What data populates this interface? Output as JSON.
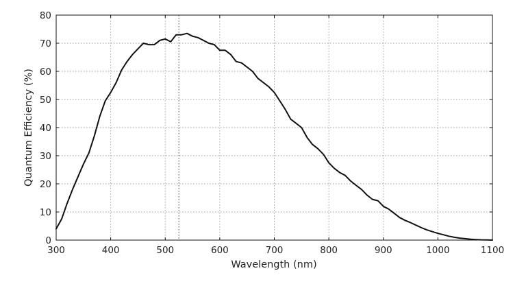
{
  "chart_data": {
    "type": "line",
    "title": "",
    "xlabel": "Wavelength (nm)",
    "ylabel": "Quantum Efficiency (%)",
    "xlim": [
      300,
      1100
    ],
    "ylim": [
      0,
      80
    ],
    "x_ticks": [
      "300",
      "400",
      "500",
      "600",
      "700",
      "800",
      "900",
      "1000",
      "1100"
    ],
    "y_ticks": [
      "0",
      "10",
      "20",
      "30",
      "40",
      "50",
      "60",
      "70",
      "80"
    ],
    "grid": true,
    "legend": "none",
    "vertical_reference_x": 525,
    "series": [
      {
        "color": "#111111",
        "x": [
          300,
          310,
          320,
          330,
          340,
          350,
          360,
          370,
          380,
          390,
          400,
          410,
          420,
          430,
          440,
          450,
          460,
          470,
          480,
          490,
          500,
          510,
          520,
          530,
          540,
          550,
          560,
          570,
          580,
          590,
          600,
          610,
          620,
          630,
          640,
          650,
          660,
          670,
          680,
          690,
          700,
          710,
          720,
          730,
          740,
          750,
          760,
          770,
          780,
          790,
          800,
          810,
          820,
          830,
          840,
          850,
          860,
          870,
          880,
          890,
          900,
          910,
          920,
          930,
          940,
          950,
          960,
          970,
          980,
          990,
          1000,
          1010,
          1020,
          1030,
          1040,
          1050,
          1060,
          1070,
          1080,
          1090,
          1100
        ],
        "y": [
          4,
          7.5,
          13,
          18,
          22.5,
          27,
          31,
          37,
          44,
          49.5,
          52.5,
          56,
          60.5,
          63.5,
          66,
          68,
          70,
          69.5,
          69.5,
          71,
          71.5,
          70.5,
          73,
          73,
          73.5,
          72.5,
          72,
          71,
          70,
          69.5,
          67.5,
          67.5,
          66,
          63.5,
          63,
          61.5,
          60,
          57.5,
          56,
          54.5,
          52.5,
          49.5,
          46.5,
          43,
          41.5,
          40,
          36.5,
          34,
          32.5,
          30.5,
          27.5,
          25.5,
          24,
          23,
          21,
          19.5,
          18,
          16,
          14.5,
          14,
          12,
          11,
          9.5,
          8,
          7,
          6.2,
          5.3,
          4.4,
          3.6,
          3,
          2.4,
          1.9,
          1.4,
          1,
          0.7,
          0.5,
          0.3,
          0.2,
          0.1,
          0.05,
          0
        ]
      }
    ]
  }
}
